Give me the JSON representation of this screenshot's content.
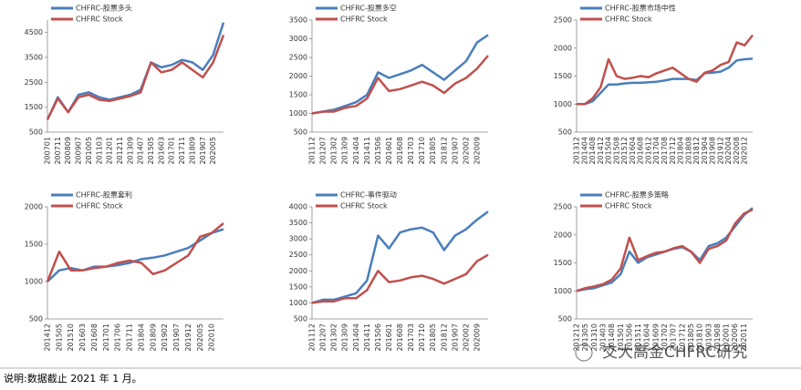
{
  "chart_data": [
    {
      "type": "line",
      "categories": [
        "200701",
        "200711",
        "200809",
        "200907",
        "201005",
        "201103",
        "201201",
        "201211",
        "201309",
        "201407",
        "201505",
        "201603",
        "201701",
        "201711",
        "201809",
        "201907",
        "202005",
        null
      ],
      "ylim": [
        500,
        5000
      ],
      "yticks": [
        500,
        1500,
        2500,
        3500,
        4500
      ],
      "series": [
        {
          "name": "CHFRC-股票多头",
          "color": "#4a7ebb",
          "values": [
            1000,
            1900,
            1300,
            2000,
            2100,
            1900,
            1800,
            1900,
            2000,
            2200,
            3300,
            3100,
            3200,
            3400,
            3300,
            3000,
            3600,
            4900
          ]
        },
        {
          "name": "CHFRC Stock",
          "color": "#c0504d",
          "values": [
            1000,
            1850,
            1300,
            1900,
            2000,
            1800,
            1750,
            1850,
            1950,
            2100,
            3300,
            2900,
            3000,
            3300,
            3000,
            2700,
            3300,
            4400
          ]
        }
      ]
    },
    {
      "type": "line",
      "categories": [
        "201112",
        "201207",
        "201302",
        "201309",
        "201404",
        "201411",
        "201506",
        "201601",
        "201608",
        "201703",
        "201710",
        "201805",
        "201812",
        "201907",
        "202002",
        "202009",
        null
      ],
      "ylim": [
        500,
        3500
      ],
      "yticks": [
        500,
        1000,
        1500,
        2000,
        2500,
        3000,
        3500
      ],
      "series": [
        {
          "name": "CHFRC-股票多空",
          "color": "#4a7ebb",
          "values": [
            1000,
            1050,
            1100,
            1200,
            1300,
            1500,
            2100,
            1950,
            2050,
            2150,
            2300,
            2100,
            1900,
            2150,
            2400,
            2900,
            3100
          ]
        },
        {
          "name": "CHFRC Stock",
          "color": "#c0504d",
          "values": [
            1000,
            1050,
            1050,
            1150,
            1200,
            1400,
            1950,
            1600,
            1650,
            1750,
            1850,
            1750,
            1550,
            1800,
            1950,
            2200,
            2550
          ]
        }
      ]
    },
    {
      "type": "line",
      "categories": [
        "201312",
        "201404",
        "201408",
        "201412",
        "201504",
        "201508",
        "201512",
        "201604",
        "201608",
        "201612",
        "201704",
        "201708",
        "201712",
        "201804",
        "201808",
        "201812",
        "201904",
        "201908",
        "201912",
        "202004",
        "202008",
        "202012",
        null
      ],
      "ylim": [
        500,
        2500
      ],
      "yticks": [
        500,
        1000,
        1500,
        2000,
        2500
      ],
      "series": [
        {
          "name": "CHFRC-股票市场中性",
          "color": "#4a7ebb",
          "values": [
            1000,
            1000,
            1050,
            1200,
            1350,
            1350,
            1370,
            1380,
            1380,
            1390,
            1400,
            1420,
            1450,
            1450,
            1450,
            1430,
            1550,
            1560,
            1580,
            1650,
            1780,
            1800,
            1810
          ]
        },
        {
          "name": "CHFRC Stock",
          "color": "#c0504d",
          "values": [
            1000,
            1000,
            1100,
            1300,
            1800,
            1500,
            1450,
            1470,
            1500,
            1480,
            1550,
            1600,
            1650,
            1550,
            1450,
            1400,
            1560,
            1600,
            1700,
            1750,
            2100,
            2050,
            2230
          ]
        }
      ]
    },
    {
      "type": "line",
      "categories": [
        "201412",
        "201505",
        "201510",
        "201603",
        "201608",
        "201701",
        "201706",
        "201711",
        "201804",
        "201809",
        "201902",
        "201907",
        "201912",
        "202005",
        "202010",
        null
      ],
      "ylim": [
        500,
        2000
      ],
      "yticks": [
        500,
        1000,
        1500,
        2000
      ],
      "series": [
        {
          "name": "CHFRC-股票套利",
          "color": "#4a7ebb",
          "values": [
            1000,
            1150,
            1180,
            1150,
            1200,
            1200,
            1220,
            1250,
            1300,
            1320,
            1350,
            1400,
            1450,
            1550,
            1650,
            1700
          ]
        },
        {
          "name": "CHFRC Stock",
          "color": "#c0504d",
          "values": [
            1000,
            1400,
            1150,
            1150,
            1180,
            1200,
            1250,
            1280,
            1250,
            1100,
            1150,
            1250,
            1350,
            1600,
            1650,
            1780
          ]
        }
      ]
    },
    {
      "type": "line",
      "categories": [
        "201112",
        "201207",
        "201302",
        "201309",
        "201404",
        "201411",
        "201506",
        "201601",
        "201608",
        "201703",
        "201710",
        "201805",
        "201812",
        "201907",
        "202002",
        "202009",
        null
      ],
      "ylim": [
        500,
        4000
      ],
      "yticks": [
        500,
        1000,
        1500,
        2000,
        2500,
        3000,
        3500,
        4000
      ],
      "series": [
        {
          "name": "CHFRC-事件驱动",
          "color": "#4a7ebb",
          "values": [
            1000,
            1100,
            1100,
            1200,
            1300,
            1700,
            3100,
            2700,
            3200,
            3300,
            3350,
            3200,
            2650,
            3100,
            3300,
            3600,
            3850
          ]
        },
        {
          "name": "CHFRC Stock",
          "color": "#c0504d",
          "values": [
            1000,
            1050,
            1050,
            1150,
            1150,
            1400,
            2000,
            1650,
            1700,
            1800,
            1850,
            1750,
            1600,
            1750,
            1900,
            2300,
            2500
          ]
        }
      ]
    },
    {
      "type": "line",
      "categories": [
        "201212",
        "201305",
        "201310",
        "201403",
        "201408",
        "201501",
        "201506",
        "201511",
        "201604",
        "201609",
        "201702",
        "201707",
        "201712",
        "201805",
        "201810",
        "201903",
        "201908",
        "202001",
        "202006",
        "202011",
        null
      ],
      "ylim": [
        500,
        2500
      ],
      "yticks": [
        500,
        1000,
        1500,
        2000,
        2500
      ],
      "series": [
        {
          "name": "CHFRC-股票多策略",
          "color": "#4a7ebb",
          "values": [
            1000,
            1030,
            1050,
            1100,
            1150,
            1300,
            1700,
            1500,
            1600,
            1650,
            1700,
            1750,
            1780,
            1700,
            1550,
            1800,
            1850,
            1950,
            2150,
            2350,
            2480
          ]
        },
        {
          "name": "CHFRC Stock",
          "color": "#c0504d",
          "values": [
            1000,
            1050,
            1080,
            1120,
            1200,
            1400,
            1950,
            1550,
            1620,
            1680,
            1700,
            1760,
            1800,
            1700,
            1500,
            1750,
            1800,
            1900,
            2200,
            2380,
            2450
          ]
        }
      ]
    }
  ],
  "watermark": "交大高金CHFRC研究",
  "note": "说明:数据截止 2021 年 1 月。"
}
